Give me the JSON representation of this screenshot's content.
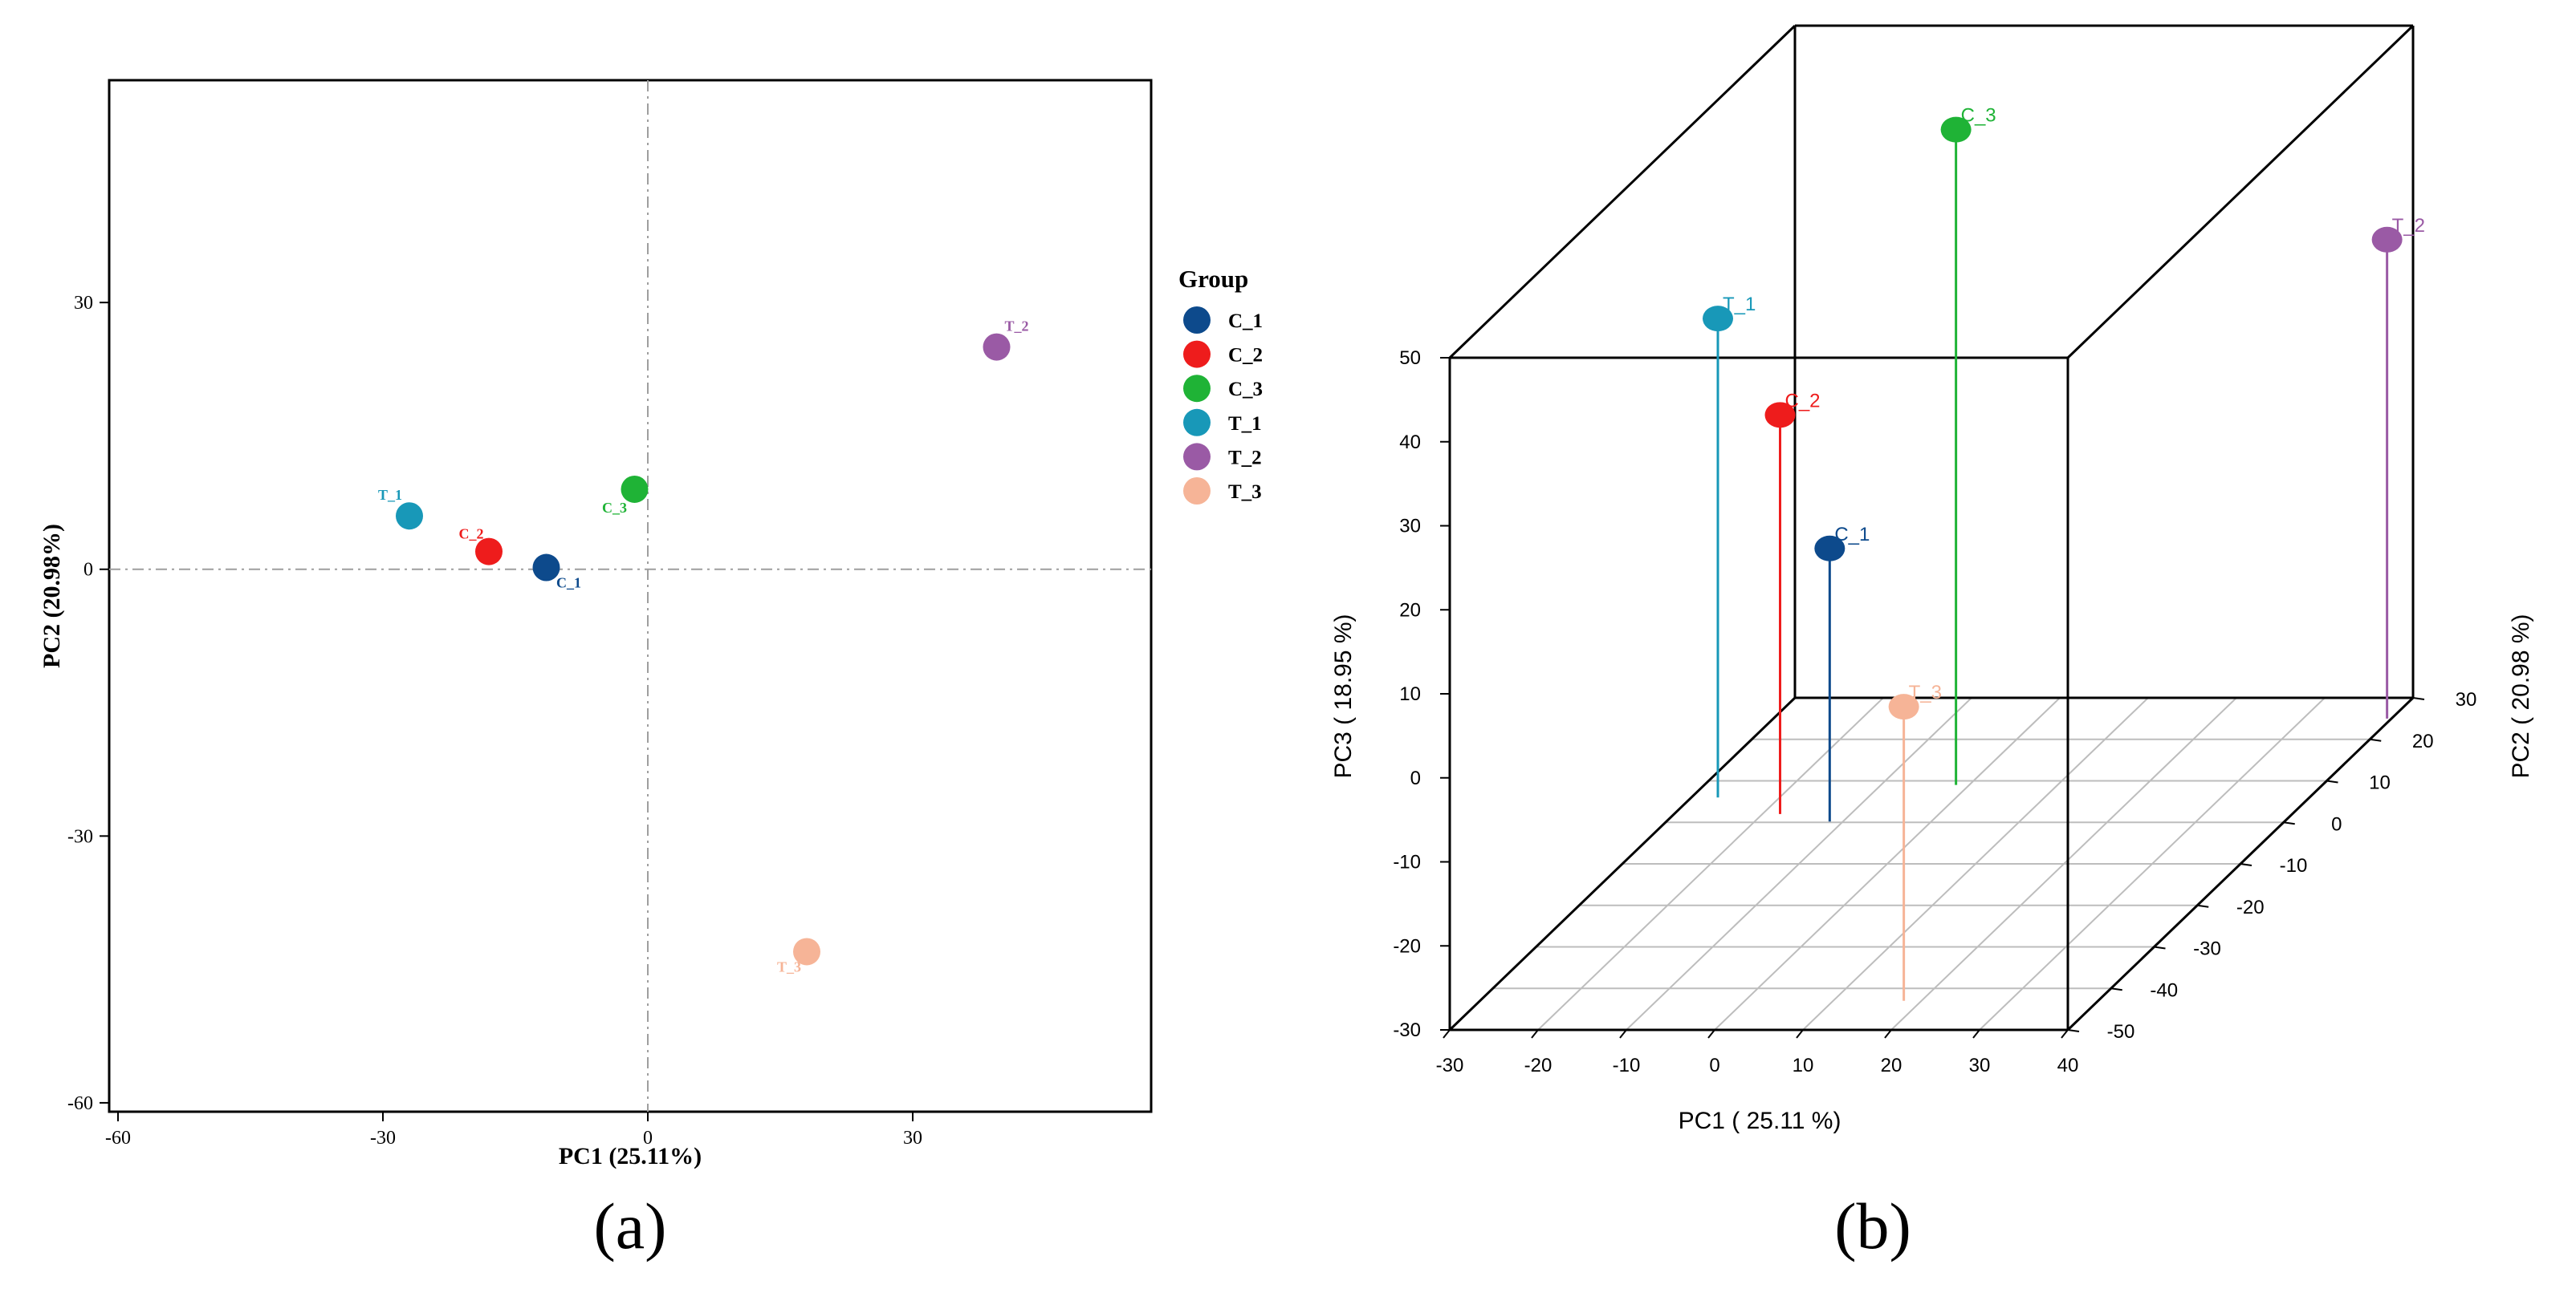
{
  "colors": {
    "C_1": "#0d4a8c",
    "C_2": "#ee1c1c",
    "C_3": "#1fb336",
    "T_1": "#1898b8",
    "T_2": "#9a5aa5",
    "T_3": "#f6b497",
    "axis": "#000000",
    "grid": "#bdbdbd",
    "refline": "#9e9e9e"
  },
  "panel_a": {
    "caption": "(a)",
    "legend": {
      "title": "Group",
      "items": [
        "C_1",
        "C_2",
        "C_3",
        "T_1",
        "T_2",
        "T_3"
      ]
    }
  },
  "panel_b": {
    "caption": "(b)"
  },
  "chart_data": [
    {
      "type": "scatter",
      "title": "",
      "xlabel": "PC1 (25.11%)",
      "ylabel": "PC2 (20.98%)",
      "xlim": [
        -61,
        57
      ],
      "ylim": [
        -61,
        55
      ],
      "xticks": [
        -60,
        -30,
        0,
        30
      ],
      "xtick_labels": [
        "-60",
        "-30",
        "0",
        "30"
      ],
      "yticks": [
        -60,
        -30,
        0,
        30
      ],
      "ytick_labels": [
        "-60",
        "-30",
        "0",
        "30"
      ],
      "reference_lines": {
        "x": 0,
        "y": 0
      },
      "legend_position": "right",
      "points": [
        {
          "label": "C_1",
          "x": -11.5,
          "y": 0.2
        },
        {
          "label": "C_2",
          "x": -18.0,
          "y": 2.0
        },
        {
          "label": "C_3",
          "x": -1.5,
          "y": 9.0
        },
        {
          "label": "T_1",
          "x": -27.0,
          "y": 6.0
        },
        {
          "label": "T_2",
          "x": 39.5,
          "y": 25.0
        },
        {
          "label": "T_3",
          "x": 18.0,
          "y": -43.0
        }
      ]
    },
    {
      "type": "scatter",
      "subtype": "3d",
      "title": "",
      "xlabel": "PC1 ( 25.11 %)",
      "ylabel": "PC2 ( 20.98 %)",
      "zlabel": "PC3 ( 18.95 %)",
      "xlim": [
        -30,
        40
      ],
      "ylim": [
        -50,
        30
      ],
      "zlim": [
        -30,
        50
      ],
      "xticks": [
        -30,
        -20,
        -10,
        0,
        10,
        20,
        30,
        40
      ],
      "xtick_labels": [
        "-30",
        "-20",
        "-10",
        "0",
        "10",
        "20",
        "30",
        "40"
      ],
      "yticks": [
        -50,
        -40,
        -30,
        -20,
        -10,
        0,
        10,
        20,
        30
      ],
      "ytick_labels": [
        "-50",
        "-40",
        "-30",
        "-20",
        "-10",
        "0",
        "10",
        "20",
        "30"
      ],
      "zticks": [
        -30,
        -20,
        -10,
        0,
        10,
        20,
        30,
        40,
        50
      ],
      "ztick_labels": [
        "-30",
        "-20",
        "-10",
        "0",
        "10",
        "20",
        "30",
        "40",
        "50"
      ],
      "points": [
        {
          "label": "C_1",
          "x": -11.5,
          "y": 0.2,
          "z": 2.5
        },
        {
          "label": "C_2",
          "x": -18.0,
          "y": 2.0,
          "z": 17.5
        },
        {
          "label": "C_3",
          "x": -1.5,
          "y": 9.0,
          "z": 48.0
        },
        {
          "label": "T_1",
          "x": -27.0,
          "y": 6.0,
          "z": 27.0
        },
        {
          "label": "T_2",
          "x": 39.5,
          "y": 25.0,
          "z": 27.0
        },
        {
          "label": "T_3",
          "x": 18.0,
          "y": -43.0,
          "z": 5.0
        }
      ]
    }
  ]
}
